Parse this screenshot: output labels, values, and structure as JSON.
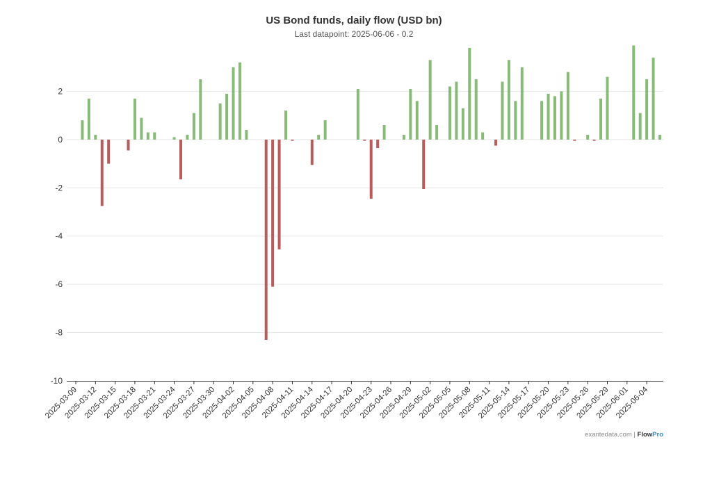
{
  "chart_data": {
    "type": "bar",
    "title": "US Bond funds, daily flow (USD bn)",
    "subtitle": "Last datapoint: 2025-06-06 - 0.2",
    "xlabel": "",
    "ylabel": "",
    "ylim": [
      -10,
      4
    ],
    "yticks": [
      2,
      0,
      -2,
      -4,
      -6,
      -8,
      -10
    ],
    "x_range": [
      "2025-03-09",
      "2025-06-06"
    ],
    "xticks": [
      "2025-03-09",
      "2025-03-12",
      "2025-03-15",
      "2025-03-18",
      "2025-03-21",
      "2025-03-24",
      "2025-03-27",
      "2025-03-30",
      "2025-04-02",
      "2025-04-05",
      "2025-04-08",
      "2025-04-11",
      "2025-04-14",
      "2025-04-17",
      "2025-04-20",
      "2025-04-23",
      "2025-04-26",
      "2025-04-29",
      "2025-05-02",
      "2025-05-05",
      "2025-05-08",
      "2025-05-11",
      "2025-05-14",
      "2025-05-17",
      "2025-05-20",
      "2025-05-23",
      "2025-05-26",
      "2025-05-29",
      "2025-06-01",
      "2025-06-04"
    ],
    "grid": true,
    "legend": "none",
    "colors": {
      "positive": "#88bb77",
      "negative": "#b85c5c"
    },
    "series": [
      {
        "points": [
          [
            "2025-03-10",
            0.8
          ],
          [
            "2025-03-11",
            1.7
          ],
          [
            "2025-03-12",
            0.2
          ],
          [
            "2025-03-13",
            -2.75
          ],
          [
            "2025-03-14",
            -1.0
          ],
          [
            "2025-03-17",
            -0.45
          ],
          [
            "2025-03-18",
            1.7
          ],
          [
            "2025-03-19",
            0.9
          ],
          [
            "2025-03-20",
            0.3
          ],
          [
            "2025-03-21",
            0.3
          ],
          [
            "2025-03-24",
            0.1
          ],
          [
            "2025-03-25",
            -1.65
          ],
          [
            "2025-03-26",
            0.2
          ],
          [
            "2025-03-27",
            1.1
          ],
          [
            "2025-03-28",
            2.5
          ],
          [
            "2025-03-31",
            1.5
          ],
          [
            "2025-04-01",
            1.9
          ],
          [
            "2025-04-02",
            3.0
          ],
          [
            "2025-04-03",
            3.2
          ],
          [
            "2025-04-04",
            0.4
          ],
          [
            "2025-04-07",
            -8.3
          ],
          [
            "2025-04-08",
            -6.1
          ],
          [
            "2025-04-09",
            -4.55
          ],
          [
            "2025-04-10",
            1.2
          ],
          [
            "2025-04-11",
            -0.05
          ],
          [
            "2025-04-14",
            -1.05
          ],
          [
            "2025-04-15",
            0.2
          ],
          [
            "2025-04-16",
            0.8
          ],
          [
            "2025-04-21",
            2.1
          ],
          [
            "2025-04-22",
            -0.05
          ],
          [
            "2025-04-23",
            -2.45
          ],
          [
            "2025-04-24",
            -0.35
          ],
          [
            "2025-04-25",
            0.6
          ],
          [
            "2025-04-28",
            0.2
          ],
          [
            "2025-04-29",
            2.1
          ],
          [
            "2025-04-30",
            1.6
          ],
          [
            "2025-05-01",
            -2.05
          ],
          [
            "2025-05-02",
            3.3
          ],
          [
            "2025-05-03",
            0.6
          ],
          [
            "2025-05-05",
            2.2
          ],
          [
            "2025-05-06",
            2.4
          ],
          [
            "2025-05-07",
            1.3
          ],
          [
            "2025-05-08",
            3.8
          ],
          [
            "2025-05-09",
            2.5
          ],
          [
            "2025-05-10",
            0.3
          ],
          [
            "2025-05-12",
            -0.25
          ],
          [
            "2025-05-13",
            2.4
          ],
          [
            "2025-05-14",
            3.3
          ],
          [
            "2025-05-15",
            1.6
          ],
          [
            "2025-05-16",
            3.0
          ],
          [
            "2025-05-19",
            1.6
          ],
          [
            "2025-05-20",
            1.9
          ],
          [
            "2025-05-21",
            1.8
          ],
          [
            "2025-05-22",
            2.0
          ],
          [
            "2025-05-23",
            2.8
          ],
          [
            "2025-05-24",
            -0.05
          ],
          [
            "2025-05-26",
            0.2
          ],
          [
            "2025-05-27",
            -0.05
          ],
          [
            "2025-05-28",
            1.7
          ],
          [
            "2025-05-29",
            2.6
          ],
          [
            "2025-06-02",
            3.9
          ],
          [
            "2025-06-03",
            1.1
          ],
          [
            "2025-06-04",
            2.5
          ],
          [
            "2025-06-05",
            3.4
          ],
          [
            "2025-06-06",
            0.2
          ]
        ]
      }
    ]
  },
  "credit": {
    "site": "exantedata.com",
    "separator": " | ",
    "brand_a": "Flow",
    "brand_b": "Pro"
  }
}
